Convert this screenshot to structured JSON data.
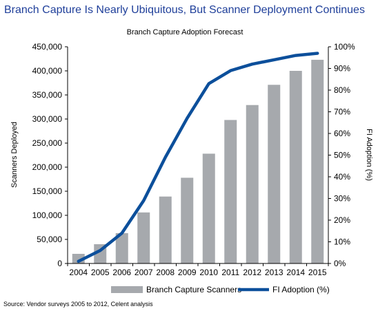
{
  "headline": "Branch Capture Is Nearly Ubiquitous, But Scanner Deployment Continues",
  "source": "Source: Vendor surveys 2005 to 2012, Celent analysis",
  "colors": {
    "headline": "#1f3f9a",
    "bars": "#a6a9ad",
    "line": "#0c4f9b"
  },
  "chart_data": {
    "type": "bar",
    "title": "Branch Capture Adoption Forecast",
    "categories": [
      "2004",
      "2005",
      "2006",
      "2007",
      "2008",
      "2009",
      "2010",
      "2011",
      "2012",
      "2013",
      "2014",
      "2015"
    ],
    "series": [
      {
        "name": "Branch Capture Scanners",
        "type": "bar",
        "axis": "left",
        "values": [
          20000,
          40000,
          63000,
          106000,
          139000,
          178000,
          228000,
          298000,
          329000,
          371000,
          400000,
          423000
        ]
      },
      {
        "name": "FI Adoption (%)",
        "type": "line",
        "axis": "right",
        "values": [
          1,
          6,
          14,
          29,
          49,
          67,
          83,
          89,
          92,
          94,
          96,
          97
        ]
      }
    ],
    "ylabel": "Scanners Deployed",
    "ylim": [
      0,
      450000
    ],
    "yticks": [
      "0",
      "50,000",
      "100,000",
      "150,000",
      "200,000",
      "250,000",
      "300,000",
      "350,000",
      "400,000",
      "450,000"
    ],
    "y2label": "FI Adoption (%)",
    "y2lim": [
      0,
      100
    ],
    "y2ticks": [
      "0%",
      "10%",
      "20%",
      "30%",
      "40%",
      "50%",
      "60%",
      "70%",
      "80%",
      "90%",
      "100%"
    ],
    "legend": "bottom",
    "grid": false
  }
}
